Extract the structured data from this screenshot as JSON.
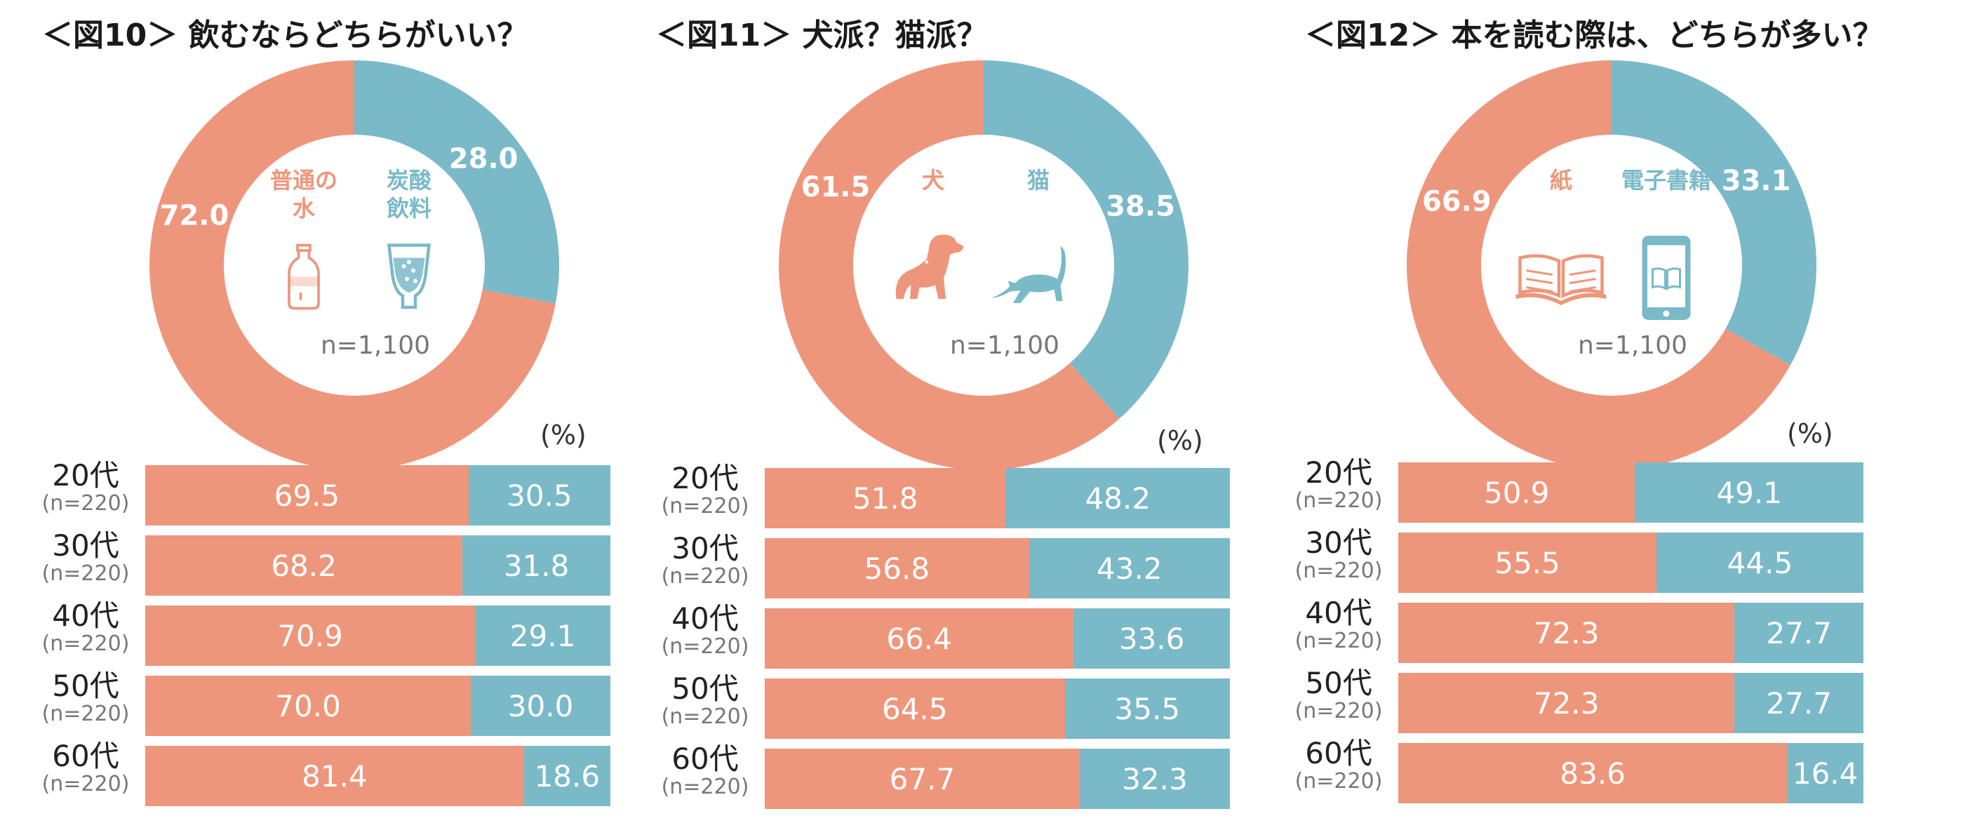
{
  "colors": {
    "first": "#ee967b",
    "second": "#7ab9c8"
  },
  "percent_unit": "(%)",
  "chart_data": [
    {
      "type": "pie",
      "title": "＜図10＞ 飲むならどちらがいい？",
      "series": [
        {
          "name": "普通の水",
          "value": 72.0
        },
        {
          "name": "炭酸飲料",
          "value": 28.0
        }
      ],
      "labels_printed": [
        "72.0",
        "28.0"
      ],
      "center_labels": [
        [
          "普通の",
          "水"
        ],
        [
          "炭酸",
          "飲料"
        ]
      ],
      "center_icons": [
        "water-bottle-icon",
        "soda-glass-icon"
      ],
      "n_label": "n=1,100",
      "bars": [
        {
          "age": "20代",
          "n": "(n=220)",
          "values": [
            69.5,
            30.5
          ],
          "labels": [
            "69.5",
            "30.5"
          ]
        },
        {
          "age": "30代",
          "n": "(n=220)",
          "values": [
            68.2,
            31.8
          ],
          "labels": [
            "68.2",
            "31.8"
          ]
        },
        {
          "age": "40代",
          "n": "(n=220)",
          "values": [
            70.9,
            29.1
          ],
          "labels": [
            "70.9",
            "29.1"
          ]
        },
        {
          "age": "50代",
          "n": "(n=220)",
          "values": [
            70.0,
            30.0
          ],
          "labels": [
            "70.0",
            "30.0"
          ]
        },
        {
          "age": "60代",
          "n": "(n=220)",
          "values": [
            81.4,
            18.6
          ],
          "labels": [
            "81.4",
            "18.6"
          ]
        }
      ]
    },
    {
      "type": "pie",
      "title": "＜図11＞ 犬派？猫派？",
      "series": [
        {
          "name": "犬",
          "value": 61.5
        },
        {
          "name": "猫",
          "value": 38.5
        }
      ],
      "labels_printed": [
        "61.5",
        "38.5"
      ],
      "center_labels": [
        [
          "犬"
        ],
        [
          "猫"
        ]
      ],
      "center_icons": [
        "dog-icon",
        "cat-icon"
      ],
      "n_label": "n=1,100",
      "bars": [
        {
          "age": "20代",
          "n": "(n=220)",
          "values": [
            51.8,
            48.2
          ],
          "labels": [
            "51.8",
            "48.2"
          ]
        },
        {
          "age": "30代",
          "n": "(n=220)",
          "values": [
            56.8,
            43.2
          ],
          "labels": [
            "56.8",
            "43.2"
          ]
        },
        {
          "age": "40代",
          "n": "(n=220)",
          "values": [
            66.4,
            33.6
          ],
          "labels": [
            "66.4",
            "33.6"
          ]
        },
        {
          "age": "50代",
          "n": "(n=220)",
          "values": [
            64.5,
            35.5
          ],
          "labels": [
            "64.5",
            "35.5"
          ]
        },
        {
          "age": "60代",
          "n": "(n=220)",
          "values": [
            67.7,
            32.3
          ],
          "labels": [
            "67.7",
            "32.3"
          ]
        }
      ]
    },
    {
      "type": "pie",
      "title": "＜図12＞ 本を読む際は、どちらが多い？",
      "series": [
        {
          "name": "紙",
          "value": 66.9
        },
        {
          "name": "電子書籍",
          "value": 33.1
        }
      ],
      "labels_printed": [
        "66.9",
        "33.1"
      ],
      "center_labels": [
        [
          "紙"
        ],
        [
          "電子書籍"
        ]
      ],
      "center_icons": [
        "book-icon",
        "tablet-icon"
      ],
      "n_label": "n=1,100",
      "bars": [
        {
          "age": "20代",
          "n": "(n=220)",
          "values": [
            50.9,
            49.1
          ],
          "labels": [
            "50.9",
            "49.1"
          ]
        },
        {
          "age": "30代",
          "n": "(n=220)",
          "values": [
            55.5,
            44.5
          ],
          "labels": [
            "55.5",
            "44.5"
          ]
        },
        {
          "age": "40代",
          "n": "(n=220)",
          "values": [
            72.3,
            27.7
          ],
          "labels": [
            "72.3",
            "27.7"
          ]
        },
        {
          "age": "50代",
          "n": "(n=220)",
          "values": [
            72.3,
            27.7
          ],
          "labels": [
            "72.3",
            "27.7"
          ]
        },
        {
          "age": "60代",
          "n": "(n=220)",
          "values": [
            83.6,
            16.4
          ],
          "labels": [
            "83.6",
            "16.4"
          ]
        }
      ]
    }
  ]
}
